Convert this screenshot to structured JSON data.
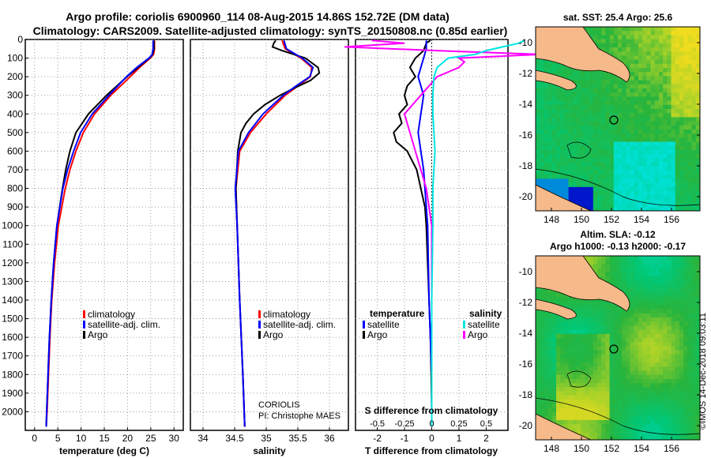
{
  "header": {
    "line1": "Argo profile: coriolis 6900960_114 08-Aug-2015 14.86S 152.72E (DM data)",
    "line2": "Climatology: CARS2009. Satellite-adjusted climatology: synTS_20150808.nc (0.85d earlier)"
  },
  "colors": {
    "climatology": "#ff0000",
    "satellite": "#0000ff",
    "argo": "#000000",
    "sal_sat": "#00e5e5",
    "sal_argo": "#ff00ff",
    "land": "#f5b98a"
  },
  "chart_data": [
    {
      "type": "line",
      "title": "",
      "xlabel": "temperature (deg C)",
      "ylabel": "",
      "xlim": [
        -2,
        32
      ],
      "ylim": [
        2100,
        0
      ],
      "xticks": [
        "0",
        "5",
        "10",
        "15",
        "20",
        "25",
        "30"
      ],
      "yticks": [
        "0",
        "100",
        "200",
        "300",
        "400",
        "500",
        "600",
        "700",
        "800",
        "900",
        "1000",
        "1100",
        "1200",
        "1300",
        "1400",
        "1500",
        "1600",
        "1700",
        "1800",
        "1900",
        "2000"
      ],
      "legend": [
        "climatology",
        "satellite-adj. clim.",
        "Argo"
      ],
      "series": [
        {
          "name": "climatology",
          "depth": [
            5,
            50,
            80,
            100,
            150,
            200,
            300,
            400,
            500,
            600,
            700,
            800,
            1000,
            1200,
            1400,
            1600,
            1800,
            2000,
            2080
          ],
          "values": [
            25.8,
            25.8,
            25.6,
            24.9,
            22.6,
            20.6,
            16.4,
            12.9,
            10.5,
            8.9,
            7.6,
            6.6,
            5.1,
            4.3,
            3.7,
            3.3,
            3.0,
            2.7,
            2.5
          ]
        },
        {
          "name": "satellite-adj. clim.",
          "depth": [
            5,
            50,
            80,
            100,
            150,
            200,
            300,
            400,
            500,
            600,
            700,
            800,
            1000,
            1200,
            1400,
            1600,
            1800,
            2000,
            2080
          ],
          "values": [
            25.5,
            25.5,
            25.3,
            24.6,
            22.0,
            19.8,
            16.0,
            12.4,
            9.9,
            8.4,
            7.1,
            6.1,
            4.8,
            4.1,
            3.6,
            3.2,
            2.9,
            2.6,
            2.5
          ]
        },
        {
          "name": "Argo",
          "depth": [
            5,
            50,
            80,
            100,
            150,
            200,
            300,
            400,
            500,
            600,
            700,
            800,
            1000,
            1200,
            1400,
            1600,
            1800,
            2000,
            2080
          ],
          "values": [
            25.7,
            25.7,
            25.4,
            24.7,
            22.3,
            19.9,
            15.5,
            11.6,
            8.9,
            7.6,
            6.7,
            6.0,
            4.8,
            4.1,
            3.6,
            3.2,
            2.9,
            2.6,
            2.5
          ]
        }
      ]
    },
    {
      "type": "line",
      "xlabel": "salinity",
      "xlim": [
        33.8,
        36.3
      ],
      "ylim": [
        2100,
        0
      ],
      "xticks": [
        "34",
        "34.5",
        "35",
        "35.5",
        "36"
      ],
      "legend": [
        "climatology",
        "satellite-adj. clim.",
        "Argo"
      ],
      "annotation": [
        "CORIOLIS",
        "PI: Christophe MAES"
      ],
      "series": [
        {
          "name": "climatology",
          "depth": [
            5,
            50,
            100,
            150,
            200,
            250,
            300,
            400,
            500,
            600,
            800,
            1000,
            1400,
            1800,
            2080
          ],
          "values": [
            35.25,
            35.3,
            35.55,
            35.72,
            35.7,
            35.5,
            35.3,
            35.0,
            34.75,
            34.58,
            34.52,
            34.54,
            34.58,
            34.63,
            34.66
          ]
        },
        {
          "name": "satellite-adj. clim.",
          "depth": [
            5,
            50,
            100,
            150,
            200,
            250,
            300,
            400,
            500,
            600,
            800,
            1000,
            1400,
            1800,
            2080
          ],
          "values": [
            35.28,
            35.32,
            35.57,
            35.74,
            35.69,
            35.47,
            35.27,
            34.95,
            34.72,
            34.56,
            34.51,
            34.54,
            34.58,
            34.63,
            34.66
          ]
        },
        {
          "name": "Argo",
          "depth": [
            5,
            20,
            40,
            60,
            100,
            150,
            180,
            220,
            260,
            300,
            350,
            400,
            450,
            500,
            600,
            800,
            1000,
            1400,
            1800,
            2080
          ],
          "values": [
            35.15,
            35.12,
            35.1,
            35.25,
            35.62,
            35.82,
            35.84,
            35.7,
            35.45,
            35.22,
            34.98,
            34.8,
            34.68,
            34.6,
            34.55,
            34.52,
            34.54,
            34.58,
            34.63,
            34.66
          ]
        }
      ]
    },
    {
      "type": "line",
      "xlabel": "T difference from climatology",
      "top_label": "S difference from climatology",
      "xlim": [
        -2.8,
        2.8
      ],
      "ylim": [
        2100,
        0
      ],
      "xticks": [
        "-2",
        "-1",
        "0",
        "1",
        "2"
      ],
      "top_ticks": [
        "-0.5",
        "-0.25",
        "0",
        "0.25",
        "0.5"
      ],
      "legend_temperature_title": "temperature",
      "legend_salinity_title": "salinity",
      "legend": [
        "satellite",
        "Argo",
        "satellite",
        "Argo"
      ],
      "series": [
        {
          "name": "T satellite",
          "depth": [
            5,
            50,
            100,
            150,
            200,
            300,
            400,
            500,
            600,
            700,
            800,
            1000,
            1400,
            1800,
            2080
          ],
          "values": [
            -0.2,
            -0.2,
            -0.3,
            -0.4,
            -0.5,
            -0.3,
            -0.4,
            -0.5,
            -0.4,
            -0.3,
            -0.25,
            -0.15,
            -0.1,
            0,
            0
          ]
        },
        {
          "name": "T Argo",
          "depth": [
            5,
            20,
            60,
            100,
            150,
            200,
            250,
            300,
            350,
            400,
            450,
            500,
            550,
            600,
            700,
            800,
            900,
            1000,
            1200,
            1400,
            1600,
            1800,
            2000,
            2080
          ],
          "values": [
            -0.05,
            -0.2,
            -0.3,
            -0.6,
            -0.8,
            -0.6,
            -0.9,
            -1.0,
            -0.9,
            -1.2,
            -1.1,
            -1.4,
            -1.3,
            -0.9,
            -0.55,
            -0.4,
            -0.25,
            -0.2,
            -0.15,
            -0.1,
            -0.05,
            -0.02,
            0,
            0
          ]
        },
        {
          "name": "S satellite",
          "depth": [
            5,
            20,
            40,
            60,
            80,
            100,
            150,
            200,
            300,
            400,
            500,
            600,
            800,
            1000,
            1400,
            1800,
            2080
          ],
          "values": [
            0.85,
            0.8,
            0.65,
            0.5,
            0.4,
            0.15,
            0.05,
            0.02,
            0.01,
            0.01,
            0.02,
            0.03,
            0.01,
            0.01,
            0,
            0,
            0
          ]
        },
        {
          "name": "S Argo",
          "depth": [
            5,
            20,
            40,
            60,
            80,
            100,
            120,
            150,
            200,
            300,
            400,
            500,
            600,
            800,
            1000,
            1400,
            1800,
            2080
          ],
          "values": [
            -0.55,
            -0.25,
            -0.8,
            0.05,
            1.0,
            0.25,
            0.3,
            0.25,
            0.05,
            -0.1,
            -0.25,
            -0.2,
            -0.15,
            -0.05,
            0,
            0,
            0,
            0
          ]
        }
      ]
    }
  ],
  "maps": [
    {
      "title": "sat. SST: 25.4 Argo: 25.6",
      "title2": "",
      "xticks": [
        "148",
        "150",
        "152",
        "154",
        "156"
      ],
      "yticks": [
        "-10",
        "-12",
        "-14",
        "-16",
        "-18",
        "-20"
      ],
      "colorscale": "SST"
    },
    {
      "title": "Altim. SLA: -0.12",
      "title2": "Argo h1000: -0.13 h2000: -0.17",
      "xticks": [
        "148",
        "150",
        "152",
        "154",
        "156"
      ],
      "yticks": [
        "-10",
        "-12",
        "-14",
        "-16",
        "-18",
        "-20"
      ],
      "colorscale": "SLA"
    }
  ],
  "footer_stamp": "©IMOS 14-Dec-2018 09:03:11"
}
